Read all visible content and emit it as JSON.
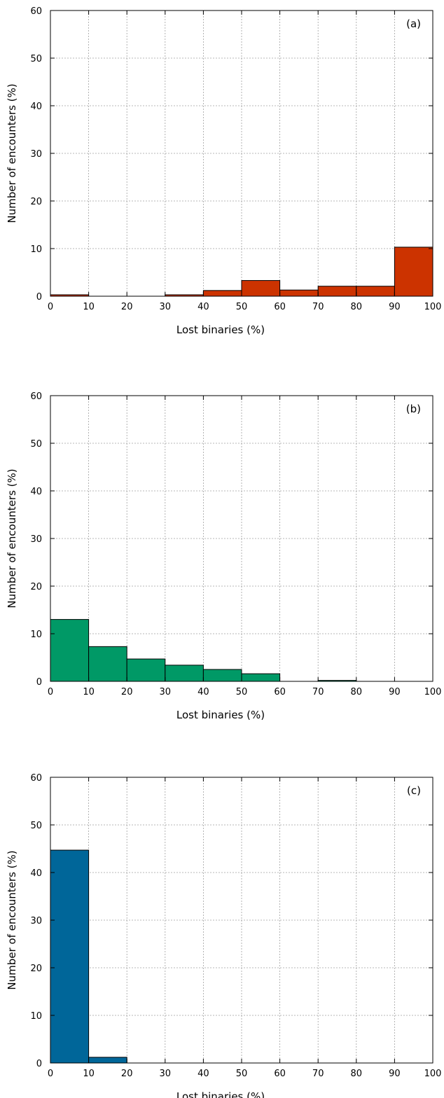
{
  "chart_data": [
    {
      "type": "bar",
      "panel_label": "(a)",
      "xlabel": "Lost binaries (%)",
      "ylabel": "Number of encounters (%)",
      "xlim": [
        0,
        100
      ],
      "ylim": [
        0,
        60
      ],
      "x_ticks": [
        0,
        10,
        20,
        30,
        40,
        50,
        60,
        70,
        80,
        90,
        100
      ],
      "y_ticks": [
        0,
        10,
        20,
        30,
        40,
        50,
        60
      ],
      "bin_edges": [
        0,
        10,
        20,
        30,
        40,
        50,
        60,
        70,
        80,
        90,
        100
      ],
      "values": [
        0.3,
        0,
        0,
        0.3,
        1.2,
        3.3,
        1.3,
        2.1,
        2.1,
        10.3
      ],
      "color": "#cc3300",
      "grid": true,
      "legend": "none"
    },
    {
      "type": "bar",
      "panel_label": "(b)",
      "xlabel": "Lost binaries (%)",
      "ylabel": "Number of encounters (%)",
      "xlim": [
        0,
        100
      ],
      "ylim": [
        0,
        60
      ],
      "x_ticks": [
        0,
        10,
        20,
        30,
        40,
        50,
        60,
        70,
        80,
        90,
        100
      ],
      "y_ticks": [
        0,
        10,
        20,
        30,
        40,
        50,
        60
      ],
      "bin_edges": [
        0,
        10,
        20,
        30,
        40,
        50,
        60,
        70,
        80,
        90,
        100
      ],
      "values": [
        13.0,
        7.3,
        4.7,
        3.4,
        2.5,
        1.6,
        0,
        0.2,
        0,
        0
      ],
      "color": "#009966",
      "grid": true,
      "legend": "none"
    },
    {
      "type": "bar",
      "panel_label": "(c)",
      "xlabel": "Lost binaries (%)",
      "ylabel": "Number of encounters (%)",
      "xlim": [
        0,
        100
      ],
      "ylim": [
        0,
        60
      ],
      "x_ticks": [
        0,
        10,
        20,
        30,
        40,
        50,
        60,
        70,
        80,
        90,
        100
      ],
      "y_ticks": [
        0,
        10,
        20,
        30,
        40,
        50,
        60
      ],
      "bin_edges": [
        0,
        10,
        20,
        30,
        40,
        50,
        60,
        70,
        80,
        90,
        100
      ],
      "values": [
        44.7,
        1.2,
        0,
        0,
        0,
        0,
        0,
        0,
        0,
        0
      ],
      "color": "#006699",
      "grid": true,
      "legend": "none"
    }
  ]
}
